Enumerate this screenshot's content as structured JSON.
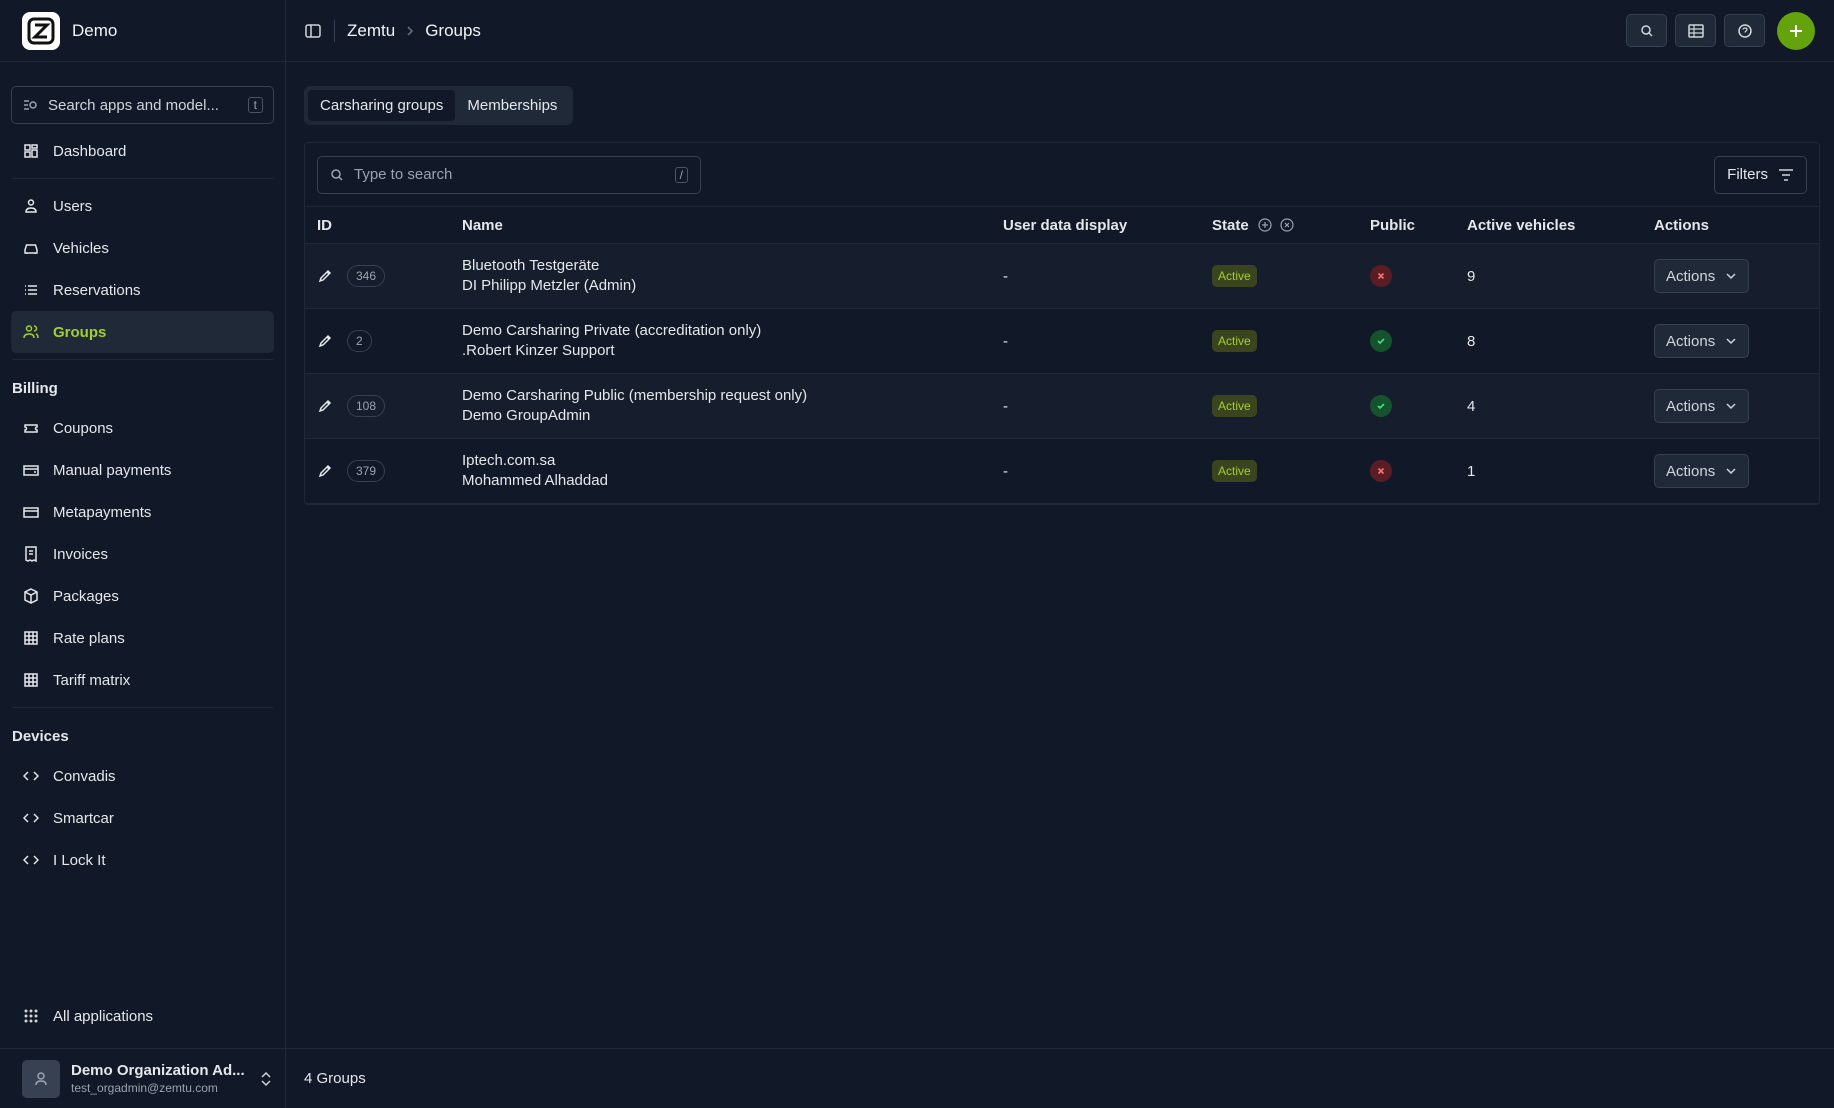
{
  "sidebar": {
    "brand": "Demo",
    "search": {
      "placeholder": "Search apps and model...",
      "shortcut": "t"
    },
    "sections": [
      {
        "title": null,
        "items": [
          "Dashboard"
        ]
      },
      {
        "title": null,
        "items": [
          "Users",
          "Vehicles",
          "Reservations",
          "Groups"
        ]
      },
      {
        "title": "Billing",
        "items": [
          "Coupons",
          "Manual payments",
          "Metapayments",
          "Invoices",
          "Packages",
          "Rate plans",
          "Tariff matrix"
        ]
      },
      {
        "title": "Devices",
        "items": [
          "Convadis",
          "Smartcar",
          "I Lock It"
        ]
      }
    ],
    "active_item": "Groups",
    "all_apps": "All applications",
    "user": {
      "name": "Demo Organization Ad...",
      "email": "test_orgadmin@zemtu.com"
    }
  },
  "header": {
    "breadcrumb": [
      "Zemtu",
      "Groups"
    ]
  },
  "tabs": [
    "Carsharing groups",
    "Memberships"
  ],
  "toolbar": {
    "search_placeholder": "Type to search",
    "search_shortcut": "/",
    "filters": "Filters"
  },
  "table": {
    "columns": [
      "ID",
      "Name",
      "User data display",
      "State",
      "Public",
      "Active vehicles",
      "Actions"
    ],
    "rows": [
      {
        "id": "346",
        "name": "Bluetooth Testgeräte",
        "owner": "DI Philipp Metzler (Admin)",
        "user_data": "-",
        "state": "Active",
        "public": false,
        "active_vehicles": "9",
        "action": "Actions"
      },
      {
        "id": "2",
        "name": "Demo Carsharing Private (accreditation only)",
        "owner": ".Robert Kinzer Support",
        "user_data": "-",
        "state": "Active",
        "public": true,
        "active_vehicles": "8",
        "action": "Actions"
      },
      {
        "id": "108",
        "name": "Demo Carsharing Public (membership request only)",
        "owner": "Demo GroupAdmin",
        "user_data": "-",
        "state": "Active",
        "public": true,
        "active_vehicles": "4",
        "action": "Actions"
      },
      {
        "id": "379",
        "name": "Iptech.com.sa",
        "owner": "Mohammed Alhaddad",
        "user_data": "-",
        "state": "Active",
        "public": false,
        "active_vehicles": "1",
        "action": "Actions"
      }
    ]
  },
  "footer": {
    "count": "4 Groups"
  }
}
